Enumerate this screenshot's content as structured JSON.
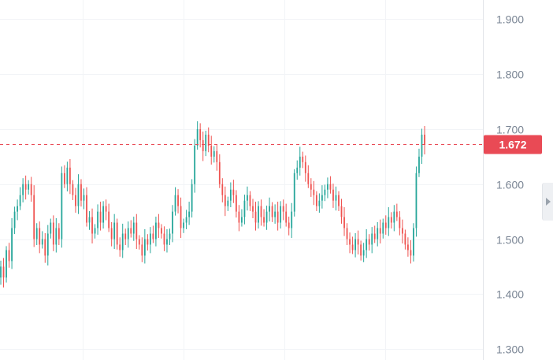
{
  "chart_data": {
    "type": "candlestick",
    "y_axis": {
      "ticks": [
        1.9,
        1.8,
        1.7,
        1.6,
        1.5,
        1.4,
        1.3
      ],
      "tick_labels": [
        "1.900",
        "1.800",
        "1.700",
        "1.600",
        "1.500",
        "1.400",
        "1.300"
      ],
      "range": [
        1.28,
        1.935
      ],
      "position": "right"
    },
    "grid": true,
    "current_price": {
      "value": 1.672,
      "label": "1.672"
    },
    "colors": {
      "up": "#26a69a",
      "down": "#ef5350",
      "tag": "#e94a55",
      "grid": "#f2f4f7",
      "axis_text": "#7a8594"
    },
    "series_closes": [
      1.45,
      1.43,
      1.48,
      1.46,
      1.52,
      1.55,
      1.56,
      1.58,
      1.6,
      1.59,
      1.6,
      1.58,
      1.5,
      1.52,
      1.49,
      1.5,
      1.47,
      1.51,
      1.53,
      1.49,
      1.52,
      1.5,
      1.62,
      1.6,
      1.63,
      1.6,
      1.58,
      1.56,
      1.6,
      1.57,
      1.58,
      1.53,
      1.54,
      1.51,
      1.52,
      1.55,
      1.53,
      1.56,
      1.55,
      1.52,
      1.5,
      1.53,
      1.49,
      1.48,
      1.51,
      1.5,
      1.52,
      1.51,
      1.53,
      1.5,
      1.49,
      1.47,
      1.5,
      1.49,
      1.51,
      1.5,
      1.53,
      1.52,
      1.51,
      1.49,
      1.5,
      1.51,
      1.55,
      1.58,
      1.56,
      1.52,
      1.53,
      1.54,
      1.55,
      1.6,
      1.67,
      1.7,
      1.68,
      1.66,
      1.69,
      1.67,
      1.65,
      1.66,
      1.64,
      1.6,
      1.58,
      1.56,
      1.57,
      1.59,
      1.58,
      1.55,
      1.53,
      1.54,
      1.57,
      1.58,
      1.56,
      1.55,
      1.53,
      1.56,
      1.54,
      1.53,
      1.55,
      1.56,
      1.54,
      1.55,
      1.53,
      1.56,
      1.55,
      1.53,
      1.52,
      1.55,
      1.62,
      1.63,
      1.65,
      1.64,
      1.62,
      1.6,
      1.59,
      1.58,
      1.56,
      1.57,
      1.58,
      1.59,
      1.6,
      1.59,
      1.57,
      1.58,
      1.56,
      1.54,
      1.52,
      1.5,
      1.49,
      1.48,
      1.5,
      1.49,
      1.47,
      1.48,
      1.5,
      1.49,
      1.51,
      1.5,
      1.52,
      1.51,
      1.53,
      1.52,
      1.54,
      1.53,
      1.55,
      1.54,
      1.52,
      1.51,
      1.49,
      1.48,
      1.47,
      1.52,
      1.62,
      1.65,
      1.69,
      1.672
    ]
  }
}
